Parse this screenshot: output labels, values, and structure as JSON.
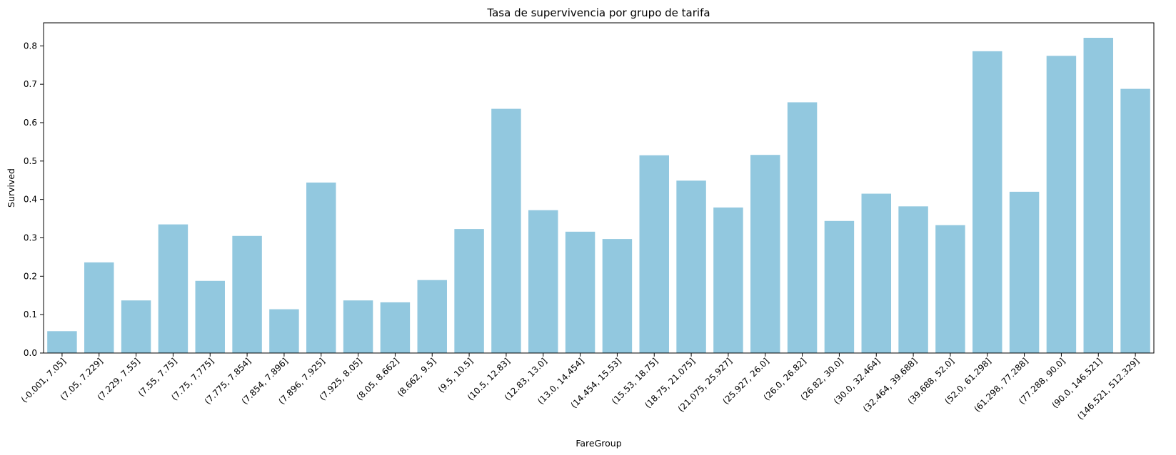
{
  "chart_data": {
    "type": "bar",
    "title": "Tasa de supervivencia por grupo de tarifa",
    "xlabel": "FareGroup",
    "ylabel": "Survived",
    "ylim": [
      0,
      0.86
    ],
    "yticks": [
      0.0,
      0.1,
      0.2,
      0.3,
      0.4,
      0.5,
      0.6,
      0.7,
      0.8
    ],
    "ytick_labels": [
      "0.0",
      "0.1",
      "0.2",
      "0.3",
      "0.4",
      "0.5",
      "0.6",
      "0.7",
      "0.8"
    ],
    "grid": false,
    "bar_color": "#92c8df",
    "categories": [
      "(-0.001, 7.05]",
      "(7.05, 7.229]",
      "(7.229, 7.55]",
      "(7.55, 7.75]",
      "(7.75, 7.775]",
      "(7.775, 7.854]",
      "(7.854, 7.896]",
      "(7.896, 7.925]",
      "(7.925, 8.05]",
      "(8.05, 8.662]",
      "(8.662, 9.5]",
      "(9.5, 10.5]",
      "(10.5, 12.83]",
      "(12.83, 13.0]",
      "(13.0, 14.454]",
      "(14.454, 15.53]",
      "(15.53, 18.75]",
      "(18.75, 21.075]",
      "(21.075, 25.927]",
      "(25.927, 26.0]",
      "(26.0, 26.82]",
      "(26.82, 30.0]",
      "(30.0, 32.464]",
      "(32.464, 39.688]",
      "(39.688, 52.0]",
      "(52.0, 61.298]",
      "(61.298, 77.288]",
      "(77.288, 90.0]",
      "(90.0, 146.521]",
      "(146.521, 512.329]"
    ],
    "values": [
      0.057,
      0.236,
      0.137,
      0.335,
      0.188,
      0.305,
      0.114,
      0.444,
      0.137,
      0.132,
      0.19,
      0.323,
      0.636,
      0.372,
      0.316,
      0.297,
      0.515,
      0.449,
      0.379,
      0.516,
      0.653,
      0.344,
      0.415,
      0.382,
      0.333,
      0.786,
      0.42,
      0.774,
      0.821,
      0.688
    ]
  }
}
